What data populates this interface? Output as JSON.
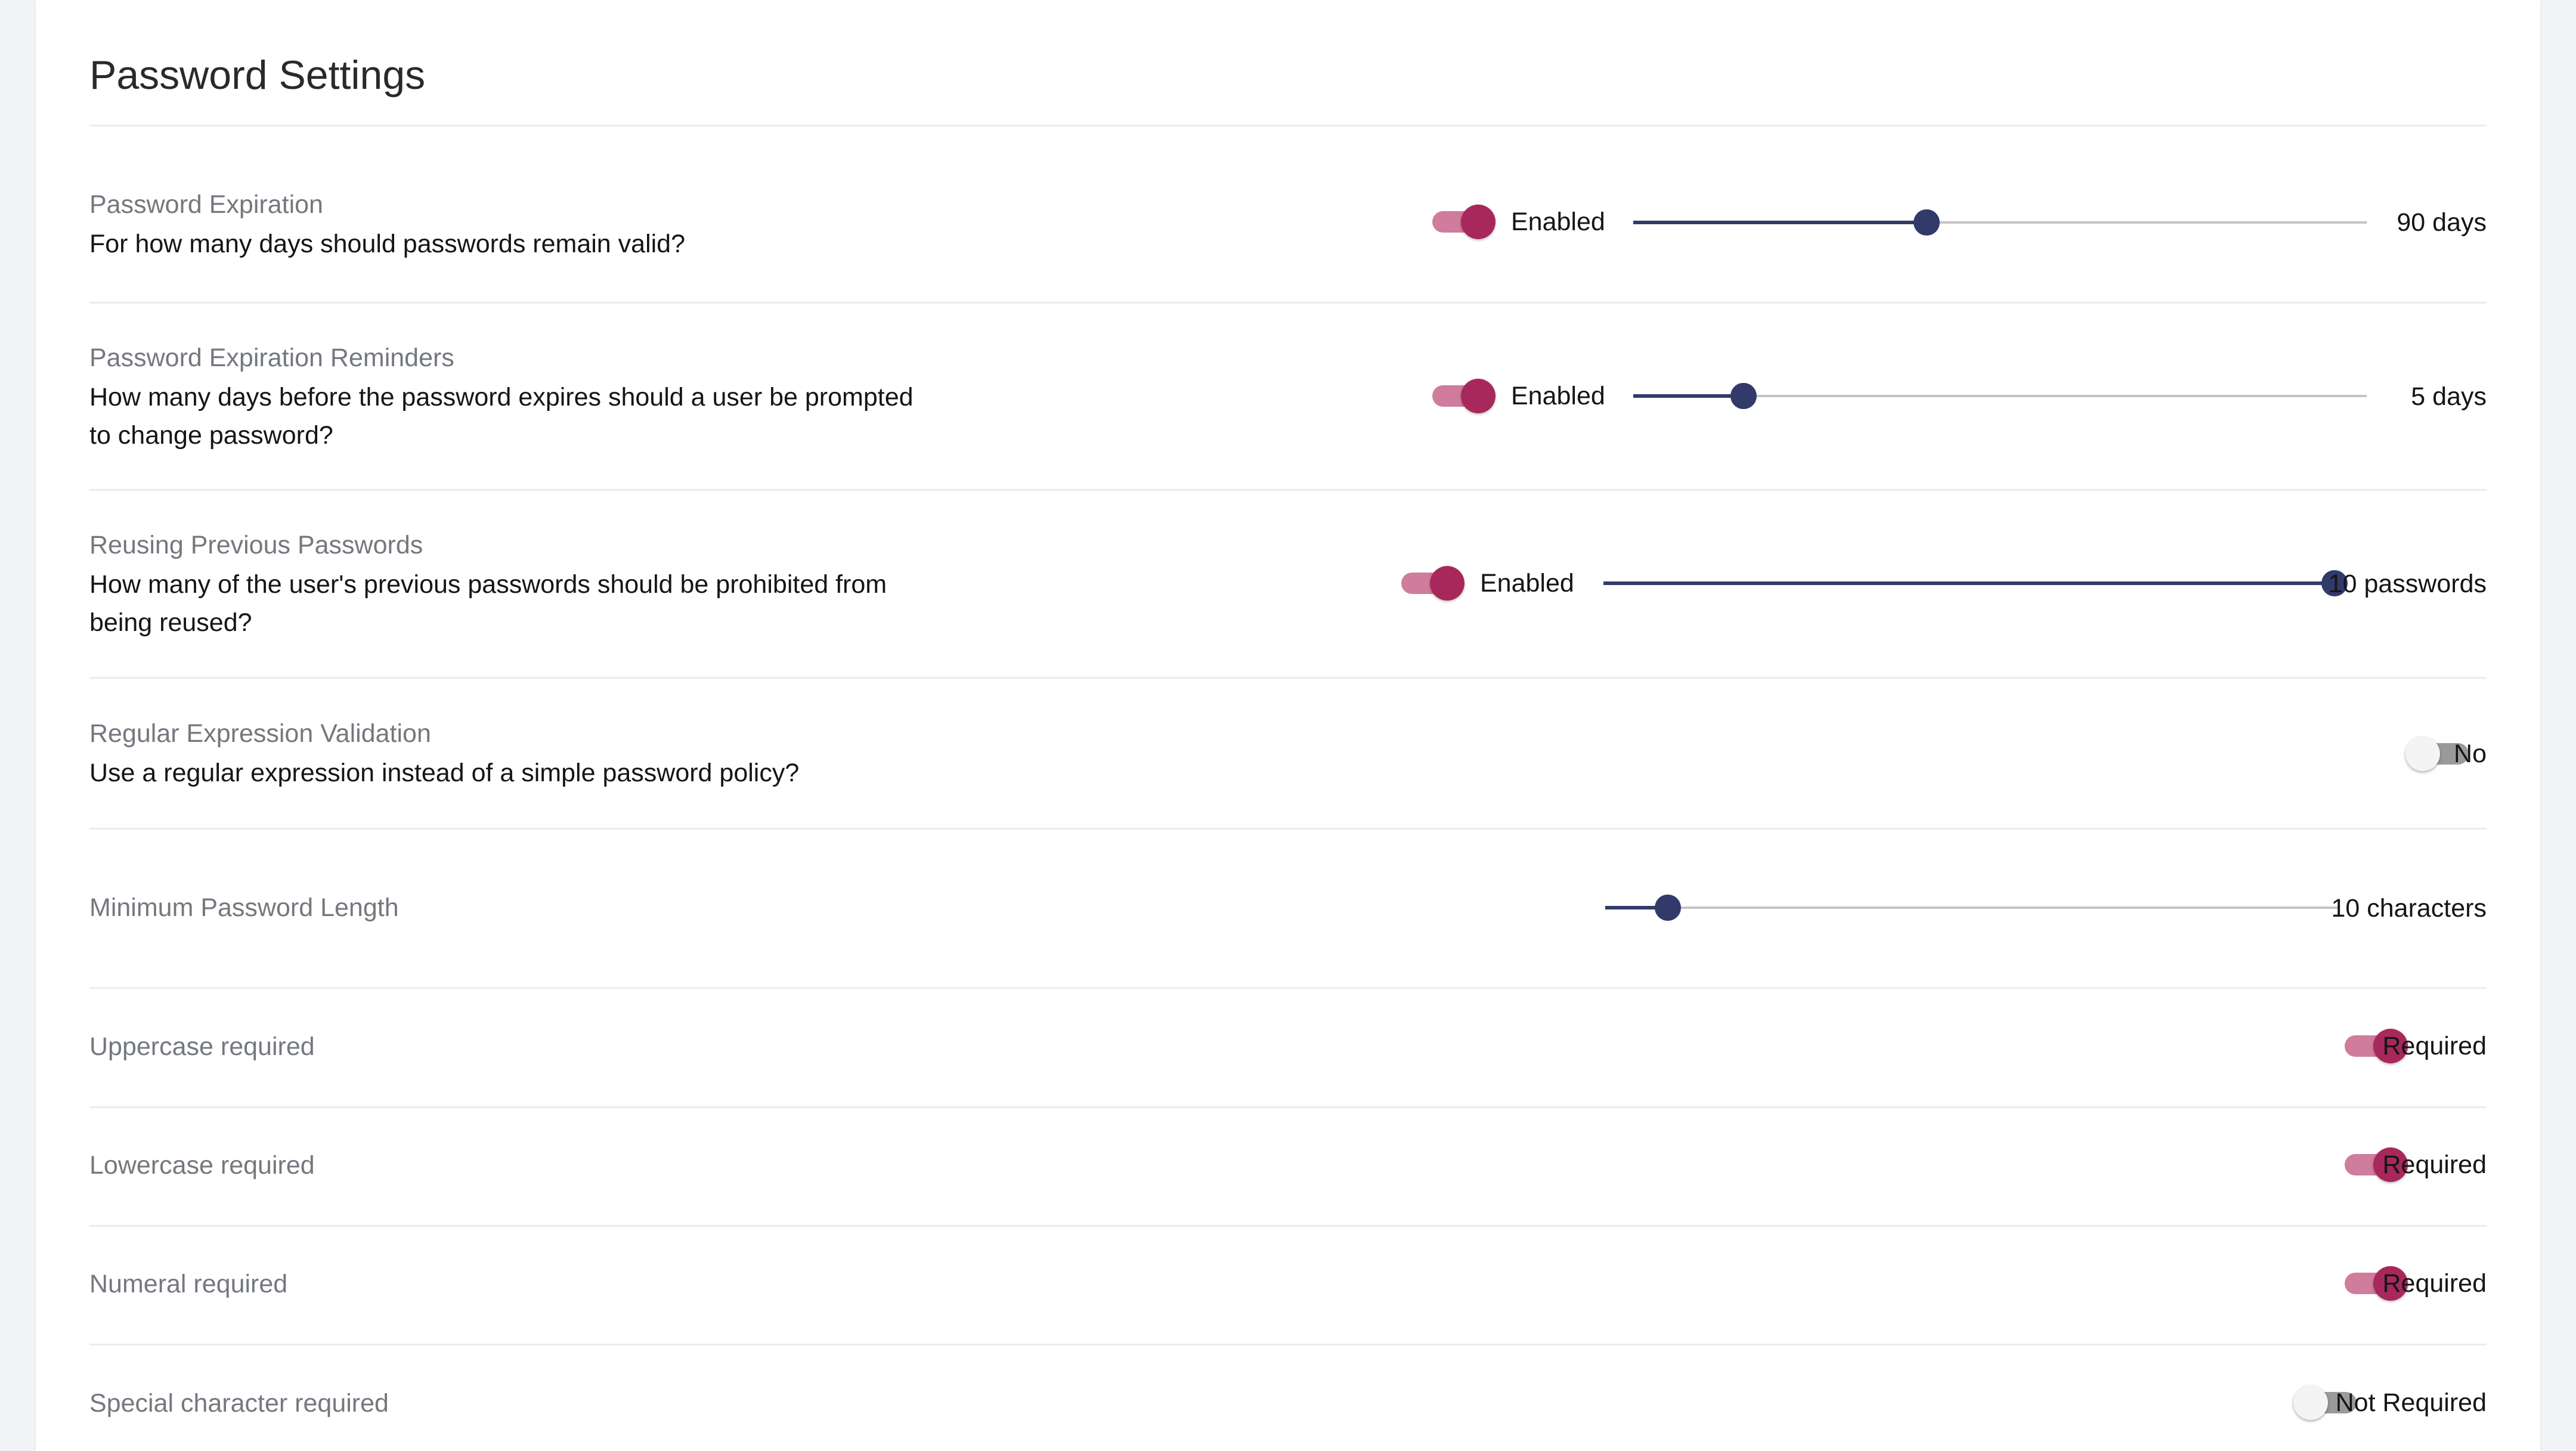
{
  "page": {
    "title": "Password Settings"
  },
  "colors": {
    "accent": "#a8285b",
    "accent_track": "#d07c9c",
    "slider": "#323a6a",
    "divider": "#ececec"
  },
  "settings": {
    "expiration": {
      "label": "Password Expiration",
      "description": "For how many days should passwords remain valid?",
      "toggle_text": "Enabled",
      "enabled": true,
      "slider_fraction": 0.4,
      "value_text": "90 days"
    },
    "reminders": {
      "label": "Password Expiration Reminders",
      "description": "How many days before the password expires should a user be prompted to change password?",
      "toggle_text": "Enabled",
      "enabled": true,
      "slider_fraction": 0.15,
      "value_text": "5 days"
    },
    "reuse": {
      "label": "Reusing Previous Passwords",
      "description": "How many of the user's previous passwords should be prohibited from being reused?",
      "toggle_text": "Enabled",
      "enabled": true,
      "slider_fraction": 1.0,
      "value_text": "10 passwords"
    },
    "regex": {
      "label": "Regular Expression Validation",
      "description": "Use a regular expression instead of a simple password policy?",
      "toggle_text": "No",
      "enabled": false
    },
    "min_length": {
      "label": "Minimum Password Length",
      "slider_fraction": 0.085,
      "value_text": "10 characters"
    },
    "uppercase": {
      "label": "Uppercase required",
      "toggle_text": "Required",
      "enabled": true
    },
    "lowercase": {
      "label": "Lowercase required",
      "toggle_text": "Required",
      "enabled": true
    },
    "numeral": {
      "label": "Numeral required",
      "toggle_text": "Required",
      "enabled": true
    },
    "special": {
      "label": "Special character required",
      "toggle_text": "Not Required",
      "enabled": false
    }
  }
}
